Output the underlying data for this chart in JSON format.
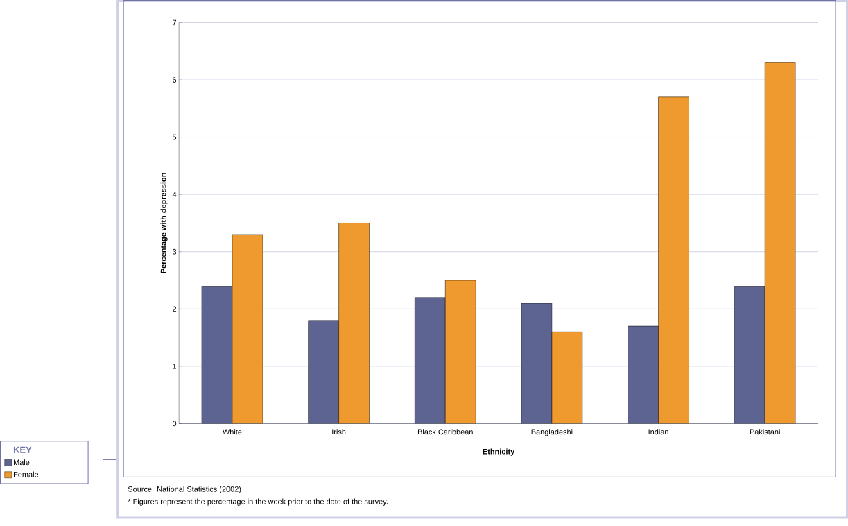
{
  "chart_data": {
    "type": "bar",
    "xlabel": "Ethnicity",
    "ylabel": "Percentage with depression",
    "legend_title": "KEY",
    "categories": [
      "White",
      "Irish",
      "Black Caribbean",
      "Bangladeshi",
      "Indian",
      "Pakistani"
    ],
    "series": [
      {
        "name": "Male",
        "color": "#5d6491",
        "values": [
          2.4,
          1.8,
          2.2,
          2.1,
          1.7,
          2.4
        ]
      },
      {
        "name": "Female",
        "color": "#ef9a2e",
        "values": [
          3.3,
          3.5,
          2.5,
          1.6,
          5.7,
          6.3
        ]
      }
    ],
    "ylim": [
      0,
      7
    ],
    "yticks": [
      0,
      1,
      2,
      3,
      4,
      5,
      6,
      7
    ],
    "grid": "y",
    "legend": "bottom left",
    "annotations": [
      "Source: National Statistics (2002)",
      "* Figures represent the percentage in the week prior to the date of the survey."
    ]
  }
}
